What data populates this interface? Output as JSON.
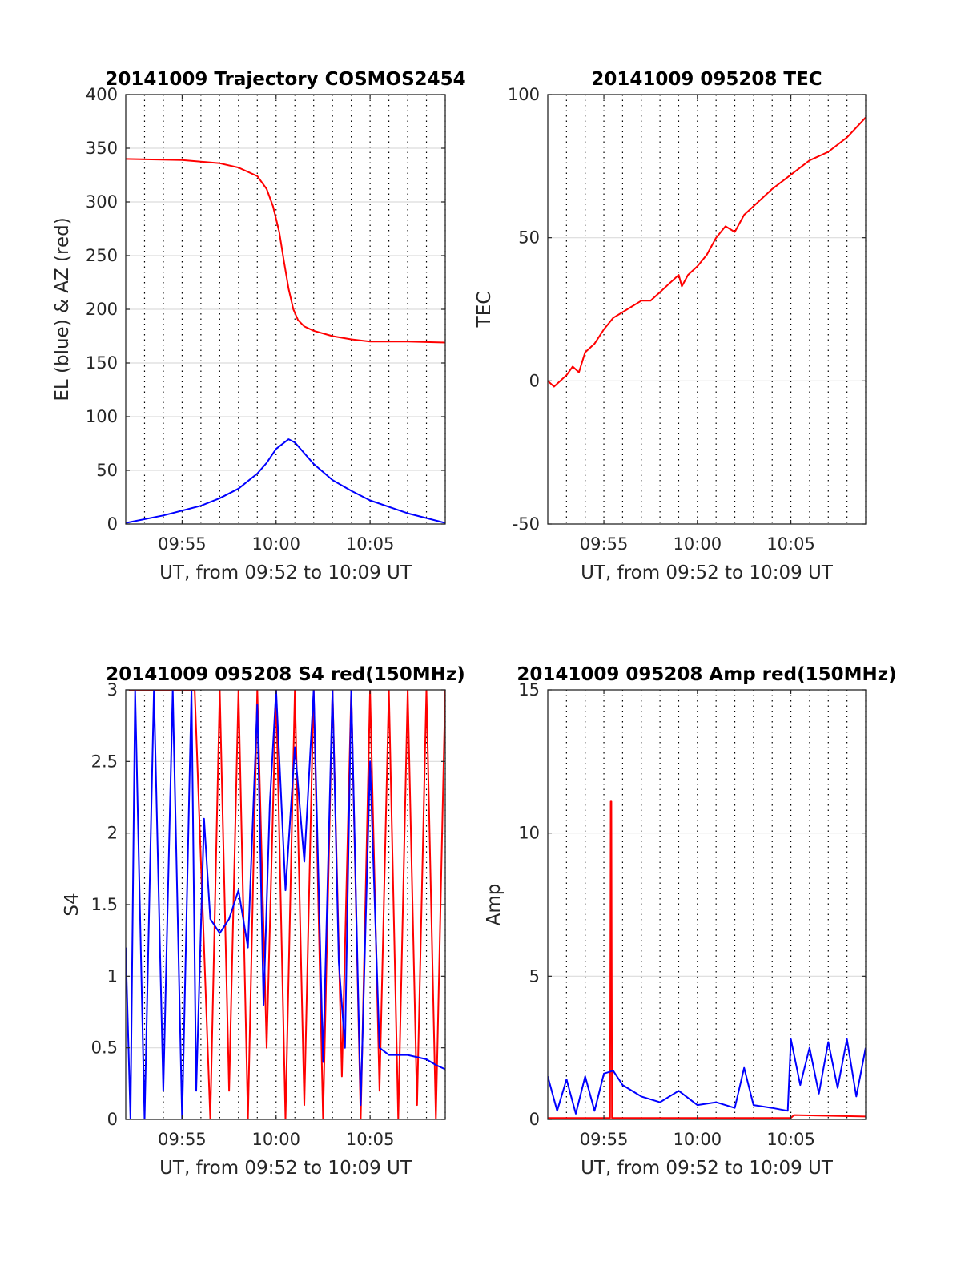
{
  "chart_data": [
    {
      "id": "traj",
      "type": "line",
      "title": "20141009 Trajectory COSMOS2454",
      "xlabel": "UT, from 09:52 to 10:09 UT",
      "ylabel": "EL (blue) & AZ (red)",
      "xlim": [
        "09:52",
        "10:09"
      ],
      "ylim": [
        0,
        400
      ],
      "xticks": [
        "09:55",
        "10:00",
        "10:05"
      ],
      "yticks": [
        0,
        50,
        100,
        150,
        200,
        250,
        300,
        350,
        400
      ],
      "x_minor_grid": "dotted, every minute",
      "y_grid": true,
      "series": [
        {
          "color": "#ff0000",
          "x": [
            "09:52",
            "09:55",
            "09:57",
            "09:58",
            "09:59",
            "09:59:30",
            "09:59:50",
            "10:00:10",
            "10:00:25",
            "10:00:40",
            "10:00:55",
            "10:01:10",
            "10:01:30",
            "10:02",
            "10:03",
            "10:04",
            "10:05",
            "10:07",
            "10:09"
          ],
          "values": [
            340,
            339,
            336,
            332,
            324,
            312,
            296,
            272,
            245,
            219,
            200,
            190,
            184,
            180,
            175,
            172,
            170,
            170,
            169
          ]
        },
        {
          "color": "#0000ff",
          "x": [
            "09:52",
            "09:54",
            "09:56",
            "09:57",
            "09:58",
            "09:59",
            "09:59:30",
            "10:00",
            "10:00:40",
            "10:01",
            "10:01:30",
            "10:02",
            "10:03",
            "10:04",
            "10:05",
            "10:07",
            "10:09"
          ],
          "values": [
            1,
            8,
            17,
            24,
            33,
            47,
            57,
            70,
            79,
            76,
            66,
            56,
            41,
            31,
            22,
            10,
            1
          ]
        }
      ]
    },
    {
      "id": "tec",
      "type": "line",
      "title": "20141009 095208 TEC",
      "xlabel": "UT, from 09:52 to 10:09 UT",
      "ylabel": "TEC",
      "xlim": [
        "09:52",
        "10:09"
      ],
      "ylim": [
        -50,
        100
      ],
      "xticks": [
        "09:55",
        "10:00",
        "10:05"
      ],
      "yticks": [
        -50,
        0,
        50,
        100
      ],
      "x_minor_grid": "dotted, every minute",
      "y_grid": true,
      "series": [
        {
          "color": "#ff0000",
          "x": [
            "09:52",
            "09:52:20",
            "09:53",
            "09:53:20",
            "09:53:40",
            "09:54",
            "09:54:30",
            "09:55",
            "09:55:30",
            "09:56",
            "09:57",
            "09:57:30",
            "09:58",
            "09:58:30",
            "09:59",
            "09:59:10",
            "09:59:30",
            "10:00",
            "10:00:30",
            "10:01",
            "10:01:30",
            "10:02",
            "10:02:30",
            "10:03",
            "10:04",
            "10:05",
            "10:06",
            "10:07",
            "10:08",
            "10:09"
          ],
          "values": [
            0,
            -2,
            2,
            5,
            3,
            10,
            13,
            18,
            22,
            24,
            28,
            28,
            31,
            34,
            37,
            33,
            37,
            40,
            44,
            50,
            54,
            52,
            58,
            61,
            67,
            72,
            77,
            80,
            85,
            92
          ]
        }
      ]
    },
    {
      "id": "s4",
      "type": "line",
      "title": "20141009 095208 S4 red(150MHz)",
      "xlabel": "UT, from 09:52 to 10:09 UT",
      "ylabel": "S4",
      "xlim": [
        "09:52",
        "10:09"
      ],
      "ylim": [
        0,
        3
      ],
      "xticks": [
        "09:55",
        "10:00",
        "10:05"
      ],
      "yticks": [
        0,
        0.5,
        1,
        1.5,
        2,
        2.5,
        3
      ],
      "x_minor_grid": "dotted, every minute",
      "y_grid": true,
      "series": [
        {
          "color": "#ff0000",
          "x": [
            "09:52:10",
            "09:55:40",
            "09:56",
            "09:56:30",
            "09:57",
            "09:57:30",
            "09:58",
            "09:58:30",
            "09:59",
            "09:59:30",
            "10:00",
            "10:00:30",
            "10:01",
            "10:01:30",
            "10:02",
            "10:02:30",
            "10:03",
            "10:03:30",
            "10:04",
            "10:04:30",
            "10:05",
            "10:05:30",
            "10:06",
            "10:06:30",
            "10:07",
            "10:07:30",
            "10:08",
            "10:08:30",
            "10:09"
          ],
          "values": [
            3,
            3,
            1.8,
            0,
            3,
            0.2,
            3,
            0,
            3,
            0.5,
            3,
            0,
            3,
            0.1,
            3,
            0,
            3,
            0.3,
            3,
            0,
            3,
            0.2,
            3,
            0,
            3,
            0.1,
            3,
            0,
            3
          ]
        },
        {
          "color": "#0000ff",
          "x": [
            "09:52",
            "09:52:15",
            "09:52:30",
            "09:53",
            "09:53:30",
            "09:54",
            "09:54:30",
            "09:55",
            "09:55:30",
            "09:55:45",
            "09:56:10",
            "09:56:30",
            "09:57",
            "09:57:30",
            "09:58",
            "09:58:30",
            "09:59",
            "09:59:20",
            "09:59:40",
            "10:00",
            "10:00:30",
            "10:01",
            "10:01:30",
            "10:02",
            "10:02:30",
            "10:03",
            "10:03:20",
            "10:03:40",
            "10:04",
            "10:04:30",
            "10:05",
            "10:05:30",
            "10:06",
            "10:07",
            "10:08",
            "10:08:30",
            "10:09"
          ],
          "values": [
            1.2,
            0,
            3,
            0,
            3,
            0.2,
            3,
            0,
            3,
            0.2,
            2.1,
            1.4,
            1.3,
            1.4,
            1.6,
            1.2,
            2.9,
            0.8,
            2.2,
            3,
            1.6,
            2.6,
            1.8,
            3,
            0.4,
            3,
            1.1,
            0.5,
            3,
            0.1,
            2.5,
            0.5,
            0.45,
            0.45,
            0.42,
            0.38,
            0.35
          ]
        }
      ]
    },
    {
      "id": "amp",
      "type": "line",
      "title": "20141009 095208 Amp red(150MHz)",
      "xlabel": "UT, from 09:52 to 10:09 UT",
      "ylabel": "Amp",
      "xlim": [
        "09:52",
        "10:09"
      ],
      "ylim": [
        0,
        15
      ],
      "xticks": [
        "09:55",
        "10:00",
        "10:05"
      ],
      "yticks": [
        0,
        5,
        10,
        15
      ],
      "x_minor_grid": "dotted, every minute",
      "y_grid": true,
      "series": [
        {
          "color": "#ff0000",
          "x": [
            "09:52",
            "09:55",
            "09:55:20",
            "09:55:22",
            "09:55:24",
            "09:55:26",
            "10:05",
            "10:05:10",
            "10:09"
          ],
          "values": [
            0.05,
            0.05,
            0.05,
            11.1,
            11.1,
            0.05,
            0.05,
            0.15,
            0.1
          ]
        },
        {
          "color": "#0000ff",
          "x": [
            "09:52",
            "09:52:30",
            "09:53",
            "09:53:30",
            "09:54",
            "09:54:30",
            "09:55",
            "09:55:30",
            "09:56",
            "09:57",
            "09:58",
            "09:59",
            "10:00",
            "10:01",
            "10:02",
            "10:02:30",
            "10:03",
            "10:04",
            "10:04:50",
            "10:05",
            "10:05:30",
            "10:06",
            "10:06:30",
            "10:07",
            "10:07:30",
            "10:08",
            "10:08:30",
            "10:09"
          ],
          "values": [
            1.5,
            0.3,
            1.4,
            0.2,
            1.5,
            0.3,
            1.6,
            1.7,
            1.2,
            0.8,
            0.6,
            1.0,
            0.5,
            0.6,
            0.4,
            1.8,
            0.5,
            0.4,
            0.3,
            2.8,
            1.2,
            2.5,
            0.9,
            2.7,
            1.1,
            2.8,
            0.8,
            2.5
          ]
        }
      ]
    }
  ]
}
